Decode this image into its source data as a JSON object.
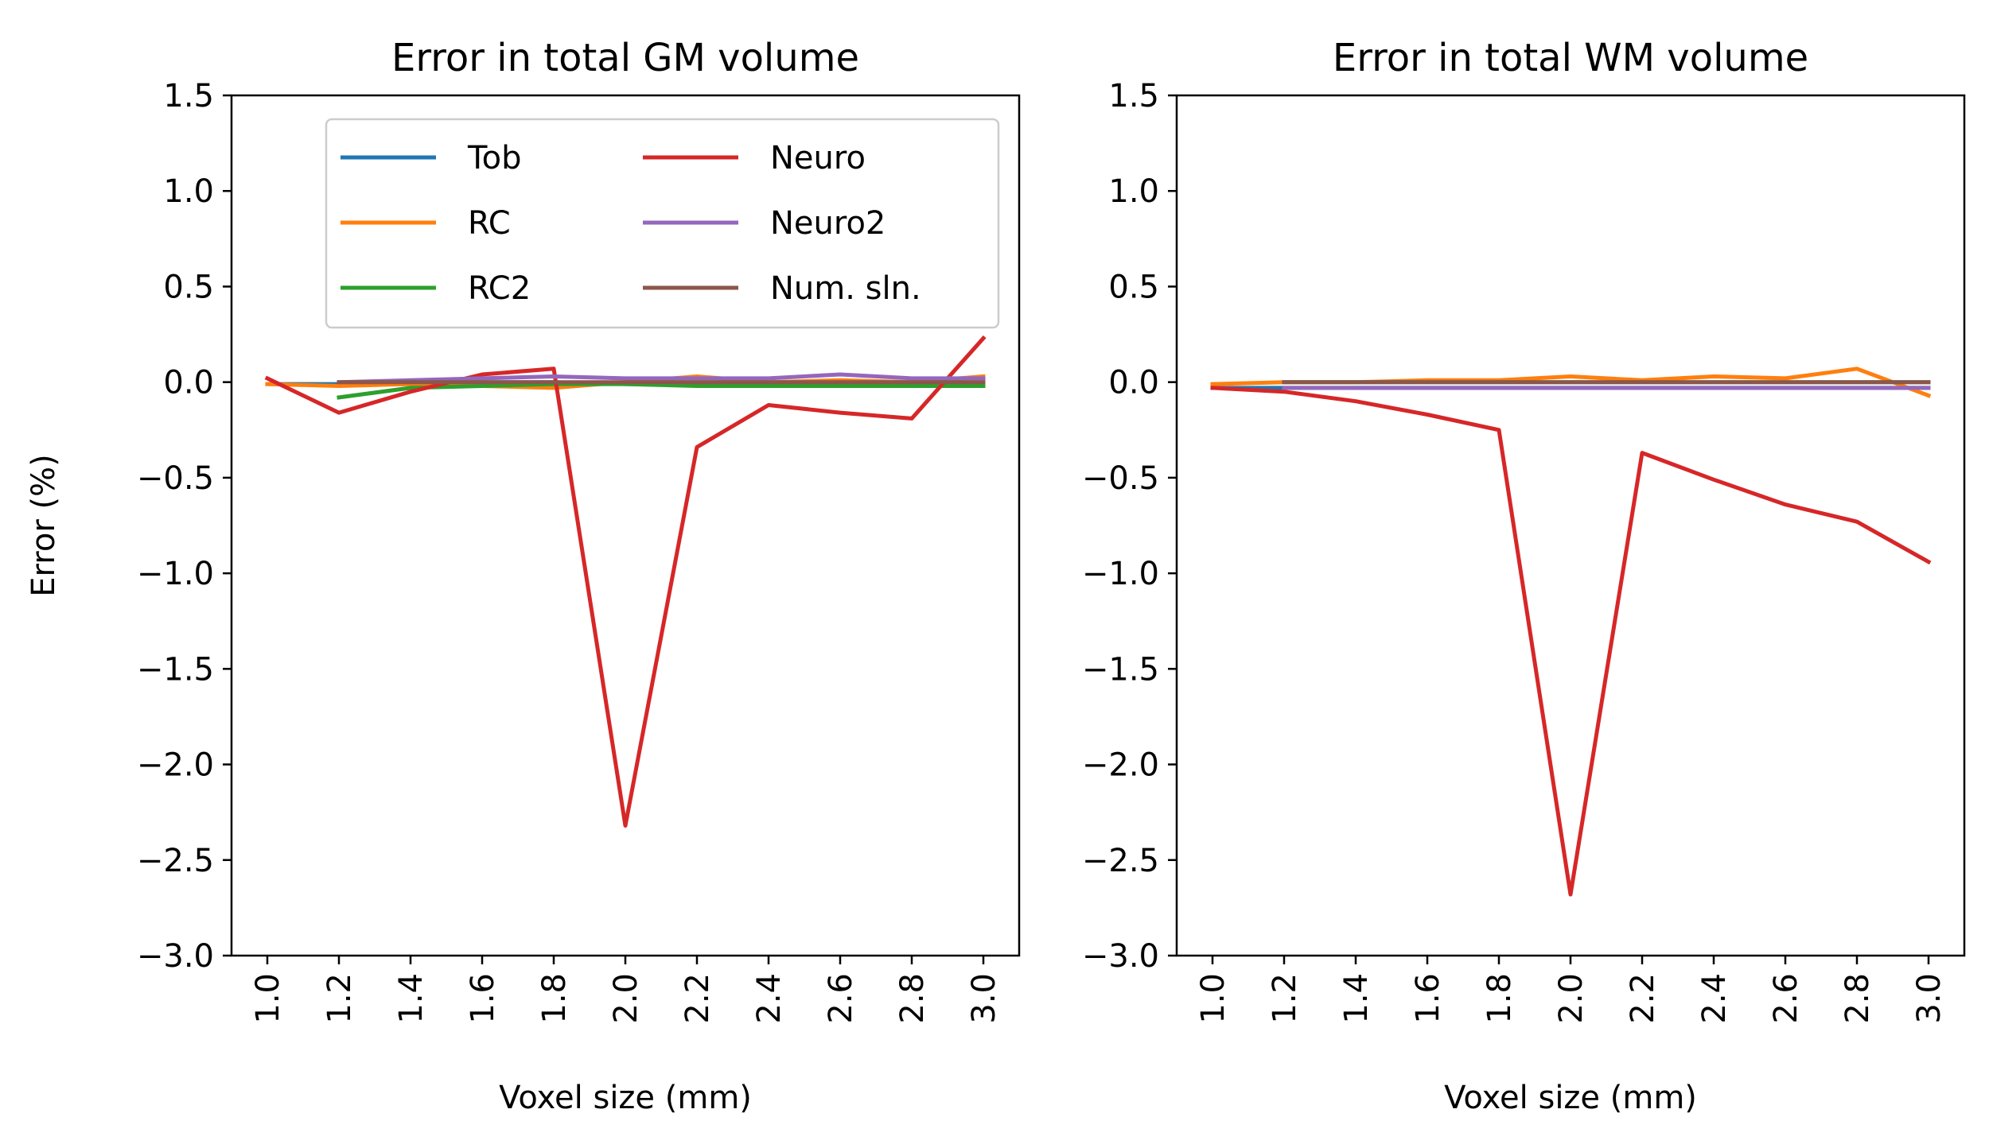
{
  "chart_data": [
    {
      "type": "line",
      "title": "Error in total GM volume",
      "xlabel": "Voxel size (mm)",
      "ylabel": "Error (%)",
      "xlim": [
        0.9,
        3.1
      ],
      "ylim": [
        -3.0,
        1.5
      ],
      "x_ticks": [
        "1.0",
        "1.2",
        "1.4",
        "1.6",
        "1.8",
        "2.0",
        "2.2",
        "2.4",
        "2.6",
        "2.8",
        "3.0"
      ],
      "y_ticks": [
        "1.5",
        "1.0",
        "0.5",
        "0.0",
        "−0.5",
        "−1.0",
        "−1.5",
        "−2.0",
        "−2.5",
        "−3.0"
      ],
      "legend": {
        "placement": "top-right",
        "columns": 2
      },
      "grid": false,
      "series": [
        {
          "name": "Tob",
          "color": "#1f77b4",
          "x": [
            1.0,
            1.2,
            1.4,
            1.6,
            1.8,
            2.0,
            2.2,
            2.4,
            2.6,
            2.8,
            3.0
          ],
          "y": [
            -0.01,
            -0.01,
            -0.01,
            0.0,
            0.0,
            -0.01,
            -0.01,
            -0.01,
            -0.01,
            -0.01,
            -0.01
          ]
        },
        {
          "name": "RC",
          "color": "#ff7f0e",
          "x": [
            1.0,
            1.2,
            1.4,
            1.6,
            1.8,
            2.0,
            2.2,
            2.4,
            2.6,
            2.8,
            3.0
          ],
          "y": [
            -0.01,
            -0.02,
            -0.01,
            -0.02,
            -0.03,
            0.0,
            0.03,
            0.0,
            0.01,
            0.0,
            0.03
          ]
        },
        {
          "name": "RC2",
          "color": "#2ca02c",
          "x": [
            1.2,
            1.4,
            1.6,
            1.8,
            2.0,
            2.2,
            2.4,
            2.6,
            2.8,
            3.0
          ],
          "y": [
            -0.08,
            -0.03,
            -0.02,
            -0.01,
            -0.01,
            -0.02,
            -0.02,
            -0.02,
            -0.02,
            -0.02
          ]
        },
        {
          "name": "Neuro",
          "color": "#d62728",
          "x": [
            1.0,
            1.2,
            1.4,
            1.6,
            1.8,
            2.0,
            2.2,
            2.4,
            2.6,
            2.8,
            3.0
          ],
          "y": [
            0.02,
            -0.16,
            -0.05,
            0.04,
            0.07,
            -2.32,
            -0.34,
            -0.12,
            -0.16,
            -0.19,
            0.23
          ]
        },
        {
          "name": "Neuro2",
          "color": "#9467bd",
          "x": [
            1.2,
            1.4,
            1.6,
            1.8,
            2.0,
            2.2,
            2.4,
            2.6,
            2.8,
            3.0
          ],
          "y": [
            0.0,
            0.01,
            0.02,
            0.03,
            0.02,
            0.02,
            0.02,
            0.04,
            0.02,
            0.02
          ]
        },
        {
          "name": "Num. sln.",
          "color": "#8c564b",
          "x": [
            1.2,
            1.4,
            1.6,
            1.8,
            2.0,
            2.2,
            2.4,
            2.6,
            2.8,
            3.0
          ],
          "y": [
            0.0,
            0.0,
            0.0,
            0.0,
            0.0,
            0.0,
            0.0,
            0.0,
            0.0,
            0.0
          ]
        }
      ]
    },
    {
      "type": "line",
      "title": "Error in total WM volume",
      "xlabel": "Voxel size (mm)",
      "ylabel": "",
      "xlim": [
        0.9,
        3.1
      ],
      "ylim": [
        -3.0,
        1.5
      ],
      "x_ticks": [
        "1.0",
        "1.2",
        "1.4",
        "1.6",
        "1.8",
        "2.0",
        "2.2",
        "2.4",
        "2.6",
        "2.8",
        "3.0"
      ],
      "y_ticks": [
        "1.5",
        "1.0",
        "0.5",
        "0.0",
        "−0.5",
        "−1.0",
        "−1.5",
        "−2.0",
        "−2.5",
        "−3.0"
      ],
      "grid": false,
      "series": [
        {
          "name": "Tob",
          "color": "#1f77b4",
          "x": [
            1.0,
            1.2,
            1.4,
            1.6,
            1.8,
            2.0,
            2.2,
            2.4,
            2.6,
            2.8,
            3.0
          ],
          "y": [
            -0.03,
            -0.03,
            -0.03,
            -0.03,
            -0.03,
            -0.03,
            -0.03,
            -0.03,
            -0.03,
            -0.03,
            -0.03
          ]
        },
        {
          "name": "RC",
          "color": "#ff7f0e",
          "x": [
            1.0,
            1.2,
            1.4,
            1.6,
            1.8,
            2.0,
            2.2,
            2.4,
            2.6,
            2.8,
            3.0
          ],
          "y": [
            -0.01,
            0.0,
            0.0,
            0.01,
            0.01,
            0.03,
            0.01,
            0.03,
            0.02,
            0.07,
            -0.07
          ]
        },
        {
          "name": "RC2",
          "color": "#2ca02c",
          "x": [
            1.2,
            1.4,
            1.6,
            1.8,
            2.0,
            2.2,
            2.4,
            2.6,
            2.8,
            3.0
          ],
          "y": [
            0.0,
            0.0,
            0.0,
            0.0,
            0.0,
            0.0,
            0.0,
            0.0,
            0.0,
            0.0
          ]
        },
        {
          "name": "Neuro",
          "color": "#d62728",
          "x": [
            1.0,
            1.2,
            1.4,
            1.6,
            1.8,
            2.0,
            2.2,
            2.4,
            2.6,
            2.8,
            3.0
          ],
          "y": [
            -0.03,
            -0.05,
            -0.1,
            -0.17,
            -0.25,
            -2.68,
            -0.37,
            -0.51,
            -0.64,
            -0.73,
            -0.94
          ]
        },
        {
          "name": "Neuro2",
          "color": "#9467bd",
          "x": [
            1.2,
            1.4,
            1.6,
            1.8,
            2.0,
            2.2,
            2.4,
            2.6,
            2.8,
            3.0
          ],
          "y": [
            -0.03,
            -0.03,
            -0.03,
            -0.03,
            -0.03,
            -0.03,
            -0.03,
            -0.03,
            -0.03,
            -0.03
          ]
        },
        {
          "name": "Num. sln.",
          "color": "#8c564b",
          "x": [
            1.2,
            1.4,
            1.6,
            1.8,
            2.0,
            2.2,
            2.4,
            2.6,
            2.8,
            3.0
          ],
          "y": [
            0.0,
            0.0,
            0.0,
            0.0,
            0.0,
            0.0,
            0.0,
            0.0,
            0.0,
            0.0
          ]
        }
      ]
    }
  ]
}
